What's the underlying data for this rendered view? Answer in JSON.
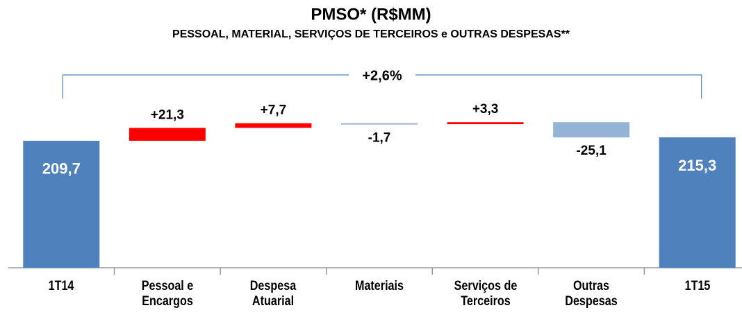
{
  "chart_data": {
    "type": "waterfall",
    "title": "PMSO* (R$MM)",
    "subtitle": "PESSOAL, MATERIAL, SERVIÇOS DE TERCEIROS e OUTRAS DESPESAS**",
    "annotation": "+2,6%",
    "categories": [
      "1T14",
      "Pessoal e\nEncargos",
      "Despesa\nAtuarial",
      "Materiais",
      "Serviços de\nTerceiros",
      "Outras\nDespesas",
      "1T15"
    ],
    "measure": [
      "total",
      "relative",
      "relative",
      "relative",
      "relative",
      "relative",
      "total"
    ],
    "values": [
      209.7,
      21.3,
      7.7,
      -1.7,
      3.3,
      -25.1,
      215.3
    ],
    "value_labels": [
      "209,7",
      "+21,3",
      "+7,7",
      "-1,7",
      "+3,3",
      "-25,1",
      "215,3"
    ],
    "total_color": "#4f81bd",
    "increase_color": "#ff0000",
    "decrease_color": "#95b3d7",
    "ylim": [
      0,
      260
    ]
  }
}
